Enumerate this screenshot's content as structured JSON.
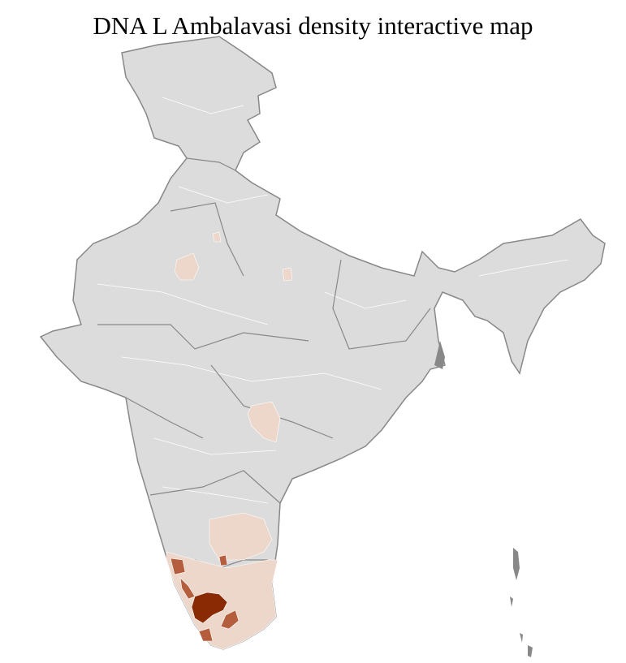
{
  "title": "DNA L Ambalavasi density interactive map",
  "colors": {
    "no_data": "#dcdcdc",
    "low": "#edd7ca",
    "medium": "#b45e3e",
    "high": "#8a2a05",
    "state_border": "#888888",
    "district_border": "#ffffff"
  }
}
